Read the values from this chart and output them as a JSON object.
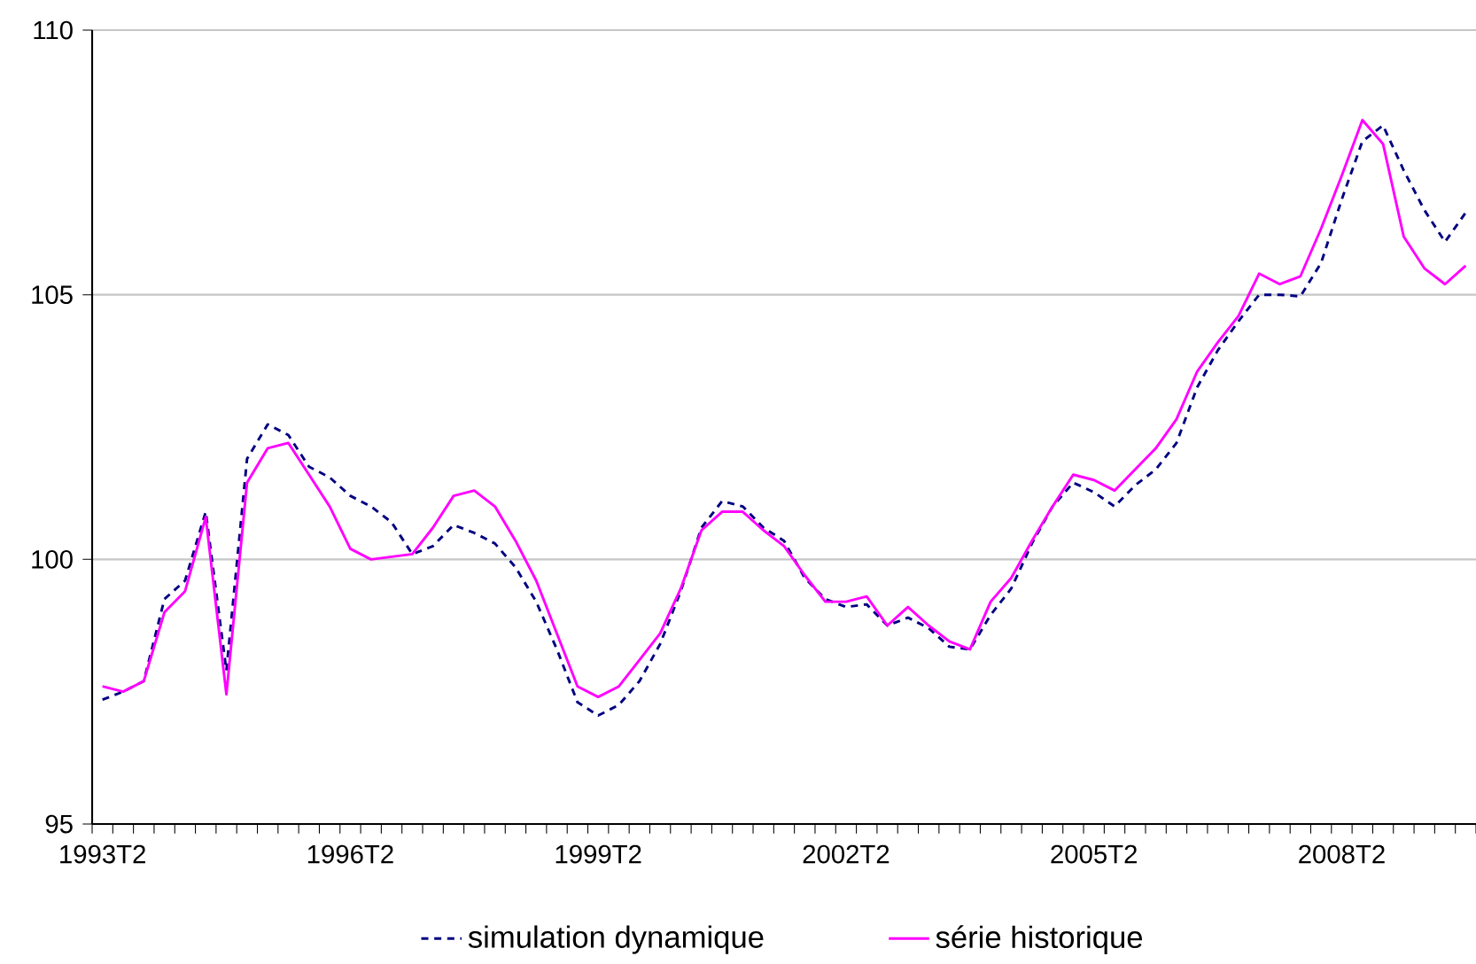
{
  "chart_data": {
    "type": "line",
    "categories": [
      "1993T2",
      null,
      null,
      null,
      null,
      null,
      null,
      null,
      null,
      null,
      null,
      null,
      "1996T2",
      null,
      null,
      null,
      null,
      null,
      null,
      null,
      null,
      null,
      null,
      null,
      "1999T2",
      null,
      null,
      null,
      null,
      null,
      null,
      null,
      null,
      null,
      null,
      null,
      "2002T2",
      null,
      null,
      null,
      null,
      null,
      null,
      null,
      null,
      null,
      null,
      null,
      "2005T2",
      null,
      null,
      null,
      null,
      null,
      null,
      null,
      null,
      null,
      null,
      null,
      "2008T2",
      null,
      null,
      null,
      null,
      null,
      null
    ],
    "series": [
      {
        "name": "simulation dynamique",
        "color": "#000080",
        "line_style": "dashed",
        "values": [
          97.35,
          97.5,
          97.7,
          99.25,
          99.6,
          100.9,
          97.9,
          101.9,
          102.55,
          102.35,
          101.75,
          101.55,
          101.2,
          101.0,
          100.7,
          100.1,
          100.25,
          100.65,
          100.5,
          100.3,
          99.85,
          99.2,
          98.3,
          97.3,
          97.05,
          97.25,
          97.7,
          98.4,
          99.4,
          100.6,
          101.1,
          101.0,
          100.6,
          100.35,
          99.65,
          99.25,
          99.1,
          99.15,
          98.75,
          98.9,
          98.7,
          98.35,
          98.3,
          98.95,
          99.45,
          100.3,
          101.0,
          101.45,
          101.27,
          101.0,
          101.4,
          101.7,
          102.2,
          103.25,
          103.95,
          104.5,
          105.0,
          105.0,
          104.97,
          105.6,
          106.8,
          107.9,
          108.2,
          107.35,
          106.6,
          106.0,
          106.55
        ]
      },
      {
        "name": "série historique",
        "color": "#ff00ff",
        "line_style": "solid",
        "values": [
          97.6,
          97.5,
          97.7,
          99.0,
          99.4,
          100.8,
          97.45,
          101.45,
          102.1,
          102.2,
          101.6,
          101.0,
          100.2,
          100.0,
          100.05,
          100.1,
          100.6,
          101.2,
          101.3,
          101.0,
          100.35,
          99.6,
          98.6,
          97.6,
          97.4,
          97.6,
          98.1,
          98.6,
          99.45,
          100.55,
          100.9,
          100.9,
          100.55,
          100.25,
          99.7,
          99.2,
          99.2,
          99.3,
          98.75,
          99.1,
          98.75,
          98.45,
          98.3,
          99.2,
          99.65,
          100.35,
          101.0,
          101.6,
          101.5,
          101.3,
          101.7,
          102.1,
          102.65,
          103.55,
          104.1,
          104.6,
          105.4,
          105.2,
          105.35,
          106.25,
          107.25,
          108.3,
          107.85,
          106.1,
          105.5,
          105.2,
          105.55
        ]
      }
    ],
    "ylim": [
      95,
      110
    ],
    "yticks": [
      95,
      100,
      105,
      110
    ],
    "grid": "y",
    "legend": "bottom"
  }
}
